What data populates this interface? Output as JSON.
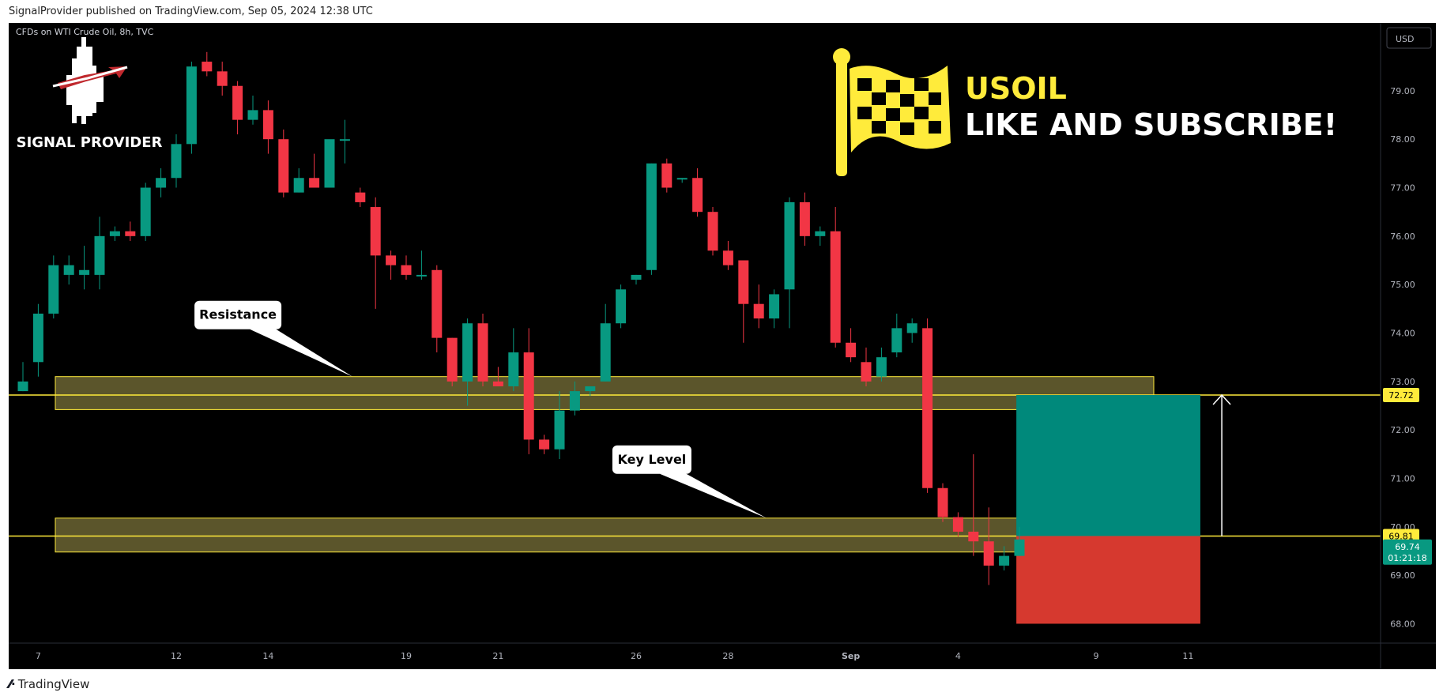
{
  "header": {
    "published_line": "SignalProvider published on TradingView.com, Sep 05, 2024 12:38 UTC"
  },
  "footer": {
    "brand": "TradingView"
  },
  "chart_data": {
    "type": "candlestick",
    "title": "CFDs on WTI Crude Oil, 8h, TVC",
    "currency": "USD",
    "y_range": [
      67.6,
      80.4
    ],
    "y_ticks": [
      "68.00",
      "69.00",
      "70.00",
      "71.00",
      "72.00",
      "73.00",
      "74.00",
      "75.00",
      "76.00",
      "77.00",
      "78.00",
      "79.00"
    ],
    "x_labels": [
      {
        "i": 1,
        "label": "7"
      },
      {
        "i": 10,
        "label": "12"
      },
      {
        "i": 16,
        "label": "14"
      },
      {
        "i": 25,
        "label": "19"
      },
      {
        "i": 31,
        "label": "21"
      },
      {
        "i": 40,
        "label": "26"
      },
      {
        "i": 46,
        "label": "28"
      },
      {
        "i": 54,
        "label": "Sep"
      },
      {
        "i": 61,
        "label": "4"
      },
      {
        "i": 70,
        "label": "9"
      },
      {
        "i": 76,
        "label": "11"
      }
    ],
    "candles": [
      [
        72.8,
        73.4,
        73.0,
        72.8
      ],
      [
        73.4,
        74.6,
        74.4,
        73.1
      ],
      [
        74.4,
        75.6,
        75.4,
        74.3
      ],
      [
        75.2,
        75.6,
        75.4,
        75.0
      ],
      [
        75.2,
        75.8,
        75.3,
        74.9
      ],
      [
        75.2,
        76.4,
        76.0,
        74.9
      ],
      [
        76.0,
        76.2,
        76.1,
        75.9
      ],
      [
        76.1,
        76.3,
        76.0,
        75.9
      ],
      [
        76.0,
        77.1,
        77.0,
        75.9
      ],
      [
        77.0,
        77.4,
        77.2,
        76.8
      ],
      [
        77.2,
        78.1,
        77.9,
        77.0
      ],
      [
        77.9,
        79.6,
        79.5,
        77.7
      ],
      [
        79.6,
        79.8,
        79.4,
        79.3
      ],
      [
        79.4,
        79.6,
        79.1,
        78.9
      ],
      [
        79.1,
        79.2,
        78.4,
        78.1
      ],
      [
        78.4,
        78.9,
        78.6,
        78.3
      ],
      [
        78.6,
        78.8,
        78.0,
        77.7
      ],
      [
        78.0,
        78.2,
        76.9,
        76.8
      ],
      [
        76.9,
        77.4,
        77.2,
        76.9
      ],
      [
        77.2,
        77.7,
        77.0,
        77.0
      ],
      [
        77.0,
        77.9,
        78.0,
        77.0
      ],
      [
        78.0,
        78.4,
        78.0,
        77.5
      ],
      [
        76.9,
        77.0,
        76.7,
        76.6
      ],
      [
        76.6,
        76.8,
        75.6,
        74.5
      ],
      [
        75.6,
        75.7,
        75.4,
        75.1
      ],
      [
        75.4,
        75.6,
        75.2,
        75.1
      ],
      [
        75.2,
        75.7,
        75.2,
        75.1
      ],
      [
        75.3,
        75.4,
        73.9,
        73.6
      ],
      [
        73.9,
        73.9,
        73.0,
        72.9
      ],
      [
        73.0,
        74.3,
        74.2,
        72.5
      ],
      [
        74.2,
        74.4,
        73.0,
        72.9
      ],
      [
        73.0,
        73.3,
        72.9,
        72.9
      ],
      [
        72.9,
        74.1,
        73.6,
        72.8
      ],
      [
        73.6,
        74.1,
        71.8,
        71.5
      ],
      [
        71.8,
        71.9,
        71.6,
        71.5
      ],
      [
        71.6,
        72.8,
        72.4,
        71.4
      ],
      [
        72.4,
        73.0,
        72.8,
        72.3
      ],
      [
        72.8,
        72.9,
        72.9,
        72.7
      ],
      [
        73.0,
        74.6,
        74.2,
        73.0
      ],
      [
        74.2,
        75.0,
        74.9,
        74.1
      ],
      [
        75.1,
        75.2,
        75.2,
        75.0
      ],
      [
        75.3,
        77.5,
        77.5,
        75.2
      ],
      [
        77.5,
        77.6,
        77.0,
        76.9
      ],
      [
        77.2,
        77.2,
        77.2,
        77.1
      ],
      [
        77.2,
        77.4,
        76.5,
        76.4
      ],
      [
        76.5,
        76.6,
        75.7,
        75.6
      ],
      [
        75.7,
        75.9,
        75.4,
        75.3
      ],
      [
        75.5,
        75.5,
        74.6,
        73.8
      ],
      [
        74.6,
        75.0,
        74.3,
        74.1
      ],
      [
        74.3,
        74.9,
        74.8,
        74.1
      ],
      [
        74.9,
        76.8,
        76.7,
        74.1
      ],
      [
        76.7,
        76.9,
        76.0,
        75.8
      ],
      [
        76.0,
        76.2,
        76.1,
        75.8
      ],
      [
        76.1,
        76.6,
        73.8,
        73.7
      ],
      [
        73.8,
        74.1,
        73.5,
        73.4
      ],
      [
        73.4,
        73.7,
        73.0,
        72.9
      ],
      [
        73.1,
        73.7,
        73.5,
        73.0
      ],
      [
        73.6,
        74.4,
        74.1,
        73.5
      ],
      [
        74.0,
        74.3,
        74.2,
        73.8
      ],
      [
        74.1,
        74.3,
        70.8,
        70.7
      ],
      [
        70.8,
        70.9,
        70.2,
        70.1
      ],
      [
        70.2,
        70.3,
        69.9,
        69.8
      ],
      [
        69.9,
        71.5,
        69.7,
        69.4
      ],
      [
        69.7,
        70.4,
        69.2,
        68.8
      ],
      [
        69.2,
        69.6,
        69.4,
        69.1
      ],
      [
        69.4,
        70.0,
        69.74,
        69.4
      ]
    ],
    "zones": [
      {
        "name": "Resistance",
        "from": 72.42,
        "to": 73.1
      },
      {
        "name": "Key Level",
        "from": 69.48,
        "to": 70.18
      }
    ],
    "horizontal_lines": [
      72.72,
      69.81
    ],
    "annotations": [
      {
        "text": "Resistance",
        "price": 73.1,
        "i": 21.5
      },
      {
        "text": "Key Level",
        "price": 70.18,
        "i": 48.5
      }
    ],
    "position": {
      "entry": 69.81,
      "target": 72.72,
      "stop": 68.0,
      "from_i": 64.8,
      "to_i": 76.8
    },
    "arrow": {
      "i": 78.2,
      "from": 69.81,
      "to": 72.72
    },
    "price_labels": [
      {
        "value": 72.72,
        "text": "72.72",
        "bg": "#ffeb3b",
        "fg": "#000000"
      },
      {
        "value": 69.81,
        "text": "69.81",
        "bg": "#ffeb3b",
        "fg": "#000000"
      },
      {
        "value": 69.74,
        "text": "69.74",
        "sub": "01:21:18",
        "bg": "#089981",
        "fg": "#ffffff"
      }
    ],
    "overlay": {
      "symbol": "USOIL",
      "cta": "LIKE AND SUBSCRIBE!",
      "logo_text": "SIGNAL PROVIDER"
    },
    "colors": {
      "up": "#089981",
      "down": "#f23645",
      "zone_fill": "#6b6432",
      "zone_line": "#ffeb3b",
      "target_fill": "#00897b",
      "stop_fill": "#d6392f",
      "accent": "#ffeb3b",
      "background": "#000000"
    }
  }
}
